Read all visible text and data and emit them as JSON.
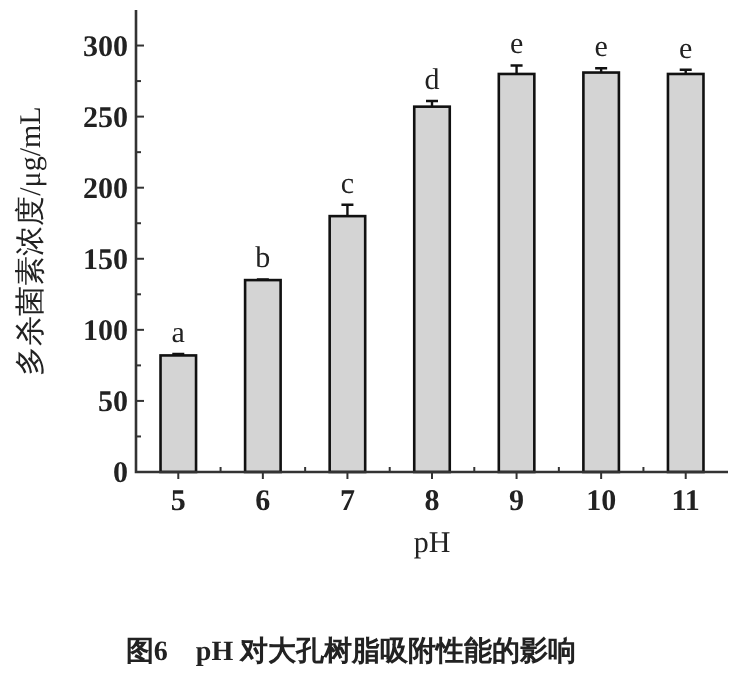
{
  "chart_data": {
    "type": "bar",
    "title": "图6    pH 对大孔树脂吸附性能的影响",
    "xlabel": "pH",
    "ylabel": "多杀菌素浓度/μg/mL",
    "categories": [
      "5",
      "6",
      "7",
      "8",
      "9",
      "10",
      "11"
    ],
    "values": [
      82,
      135,
      180,
      257,
      280,
      281,
      280
    ],
    "errors": [
      1,
      0.5,
      8,
      4,
      6,
      3,
      3
    ],
    "color": "#d4d4d4",
    "ylim": [
      0,
      325
    ],
    "yticks": [
      0,
      {
        "value": 25,
        "label": null
      },
      50,
      {
        "value": 75,
        "label": null
      },
      100,
      {
        "value": 125,
        "label": null
      },
      150,
      {
        "value": 175,
        "label": null
      },
      200,
      {
        "value": 225,
        "label": null
      },
      250,
      {
        "value": 275,
        "label": null
      },
      300
    ],
    "annotations": [
      {
        "text": "a",
        "x": "5",
        "y": 83
      },
      {
        "text": "b",
        "x": "6",
        "y": 135.5
      },
      {
        "text": "c",
        "x": "7",
        "y": 188
      },
      {
        "text": "d",
        "x": "8",
        "y": 261
      },
      {
        "text": "e",
        "x": "9",
        "y": 286
      },
      {
        "text": "e",
        "x": "10",
        "y": 284
      },
      {
        "text": "e",
        "x": "11",
        "y": 283
      }
    ]
  }
}
